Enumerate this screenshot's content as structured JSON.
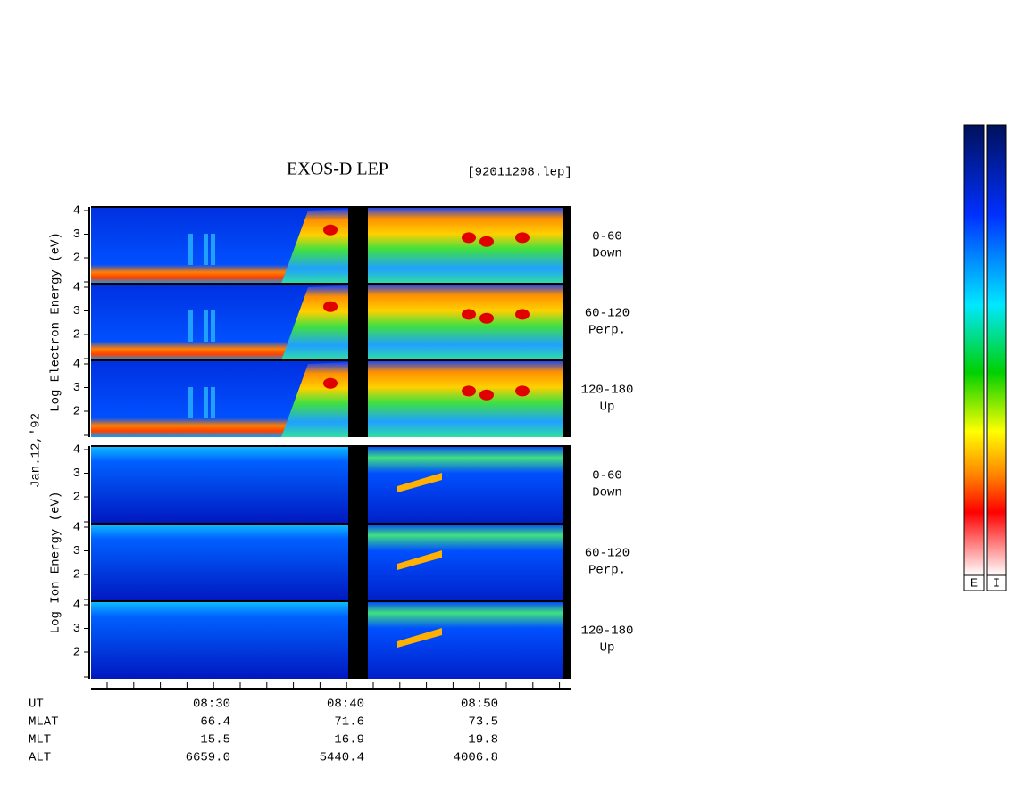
{
  "title": "EXOS-D LEP",
  "file": "[92011208.lep]",
  "date": "Jan.12,'92",
  "yticks": [
    "4",
    "3",
    "2"
  ],
  "groups": [
    {
      "axis_label": "Log Electron Energy (eV)",
      "kind": "electron",
      "panels": [
        {
          "angle": "0-60",
          "direction": "Down"
        },
        {
          "angle": "60-120",
          "direction": "Perp."
        },
        {
          "angle": "120-180",
          "direction": "Up"
        }
      ]
    },
    {
      "axis_label": "Log Ion Energy (eV)",
      "kind": "ion",
      "panels": [
        {
          "angle": "0-60",
          "direction": "Down"
        },
        {
          "angle": "60-120",
          "direction": "Perp."
        },
        {
          "angle": "120-180",
          "direction": "Up"
        }
      ]
    }
  ],
  "ephemeris": [
    {
      "label": "UT",
      "values": [
        "08:30",
        "08:40",
        "08:50"
      ]
    },
    {
      "label": "MLAT",
      "values": [
        "66.4",
        "71.6",
        "73.5"
      ]
    },
    {
      "label": "MLT",
      "values": [
        "15.5",
        "16.9",
        "19.8"
      ]
    },
    {
      "label": "ALT",
      "values": [
        "6659.0",
        "5440.4",
        "4006.8"
      ]
    }
  ],
  "colorbar": {
    "labels": [
      "E",
      "I"
    ]
  }
}
